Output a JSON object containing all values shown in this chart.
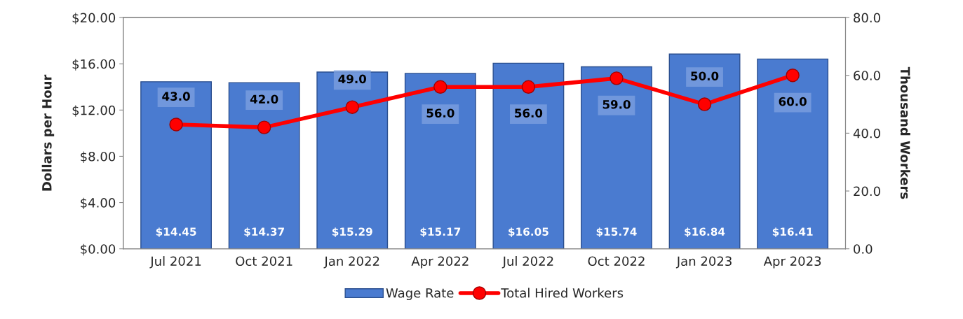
{
  "chart_data": {
    "type": "bar",
    "categories": [
      "Jul 2021",
      "Oct 2021",
      "Jan 2022",
      "Apr 2022",
      "Jul 2022",
      "Oct 2022",
      "Jan 2023",
      "Apr 2023"
    ],
    "ylabel": "Dollars per Hour",
    "y2label": "Thousand Workers",
    "ylim": [
      0,
      20
    ],
    "yticks": [
      {
        "value": 0,
        "label": "$0.00"
      },
      {
        "value": 4,
        "label": "$4.00"
      },
      {
        "value": 8,
        "label": "$8.00"
      },
      {
        "value": 12,
        "label": "$12.00"
      },
      {
        "value": 16,
        "label": "$16.00"
      },
      {
        "value": 20,
        "label": "$20.00"
      }
    ],
    "y2lim": [
      0,
      80
    ],
    "y2ticks": [
      {
        "value": 0,
        "label": "0.0"
      },
      {
        "value": 20,
        "label": "20.0"
      },
      {
        "value": 40,
        "label": "40.0"
      },
      {
        "value": 60,
        "label": "60.0"
      },
      {
        "value": 80,
        "label": "80.0"
      }
    ],
    "series": [
      {
        "name": "Wage Rate",
        "color": "#4a7bd0",
        "values": [
          14.45,
          14.37,
          15.29,
          15.17,
          16.05,
          15.74,
          16.84,
          16.41
        ],
        "value_labels": [
          "$14.45",
          "$14.37",
          "$15.29",
          "$15.17",
          "$16.05",
          "$15.74",
          "$16.84",
          "$16.41"
        ]
      },
      {
        "name": "Total Hired Workers",
        "type": "line",
        "axis": "y2",
        "color": "#ff0000",
        "marker": "circle",
        "line_style": "solid",
        "values": [
          43,
          42,
          49,
          56,
          56,
          59,
          50,
          60
        ],
        "value_labels": [
          "43.0",
          "42.0",
          "49.0",
          "56.0",
          "56.0",
          "59.0",
          "50.0",
          "60.0"
        ]
      }
    ],
    "legend": "bottom",
    "grid": false
  }
}
